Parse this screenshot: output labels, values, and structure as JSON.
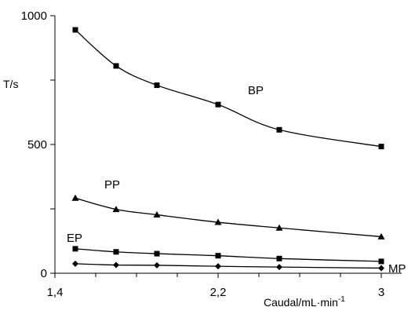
{
  "chart_data": {
    "type": "line",
    "xlabel": "Caudal/mL·min",
    "xlabel_superscript": "-1",
    "ylabel": "T/s",
    "xlim": [
      1.4,
      3.1
    ],
    "ylim": [
      0,
      1000
    ],
    "x_ticks": [
      1.4,
      2.2,
      3
    ],
    "x_tick_labels": [
      "1,4",
      "2,2",
      "3"
    ],
    "x_minor_ticks": [
      1.6,
      1.8,
      2.0,
      2.4,
      2.6,
      2.8
    ],
    "y_ticks": [
      0,
      500,
      1000
    ],
    "y_tick_labels": [
      "0",
      "500",
      "1000"
    ],
    "y_minor_ticks": [
      250,
      750
    ],
    "grid": false,
    "legend": "none",
    "series": [
      {
        "name": "BP",
        "marker": "square",
        "x": [
          1.5,
          1.7,
          1.9,
          2.2,
          2.5,
          3.0
        ],
        "y": [
          945,
          805,
          730,
          655,
          557,
          492
        ]
      },
      {
        "name": "PP",
        "marker": "triangle",
        "x": [
          1.5,
          1.7,
          1.9,
          2.2,
          2.5,
          3.0
        ],
        "y": [
          292,
          248,
          227,
          198,
          176,
          142
        ]
      },
      {
        "name": "EP",
        "marker": "square",
        "x": [
          1.5,
          1.7,
          1.9,
          2.2,
          2.5,
          3.0
        ],
        "y": [
          95,
          83,
          76,
          68,
          57,
          46
        ]
      },
      {
        "name": "MP",
        "marker": "diamond",
        "x": [
          1.5,
          1.7,
          1.9,
          2.2,
          2.5,
          3.0
        ],
        "y": [
          37,
          32,
          31,
          27,
          24,
          20
        ]
      }
    ]
  }
}
